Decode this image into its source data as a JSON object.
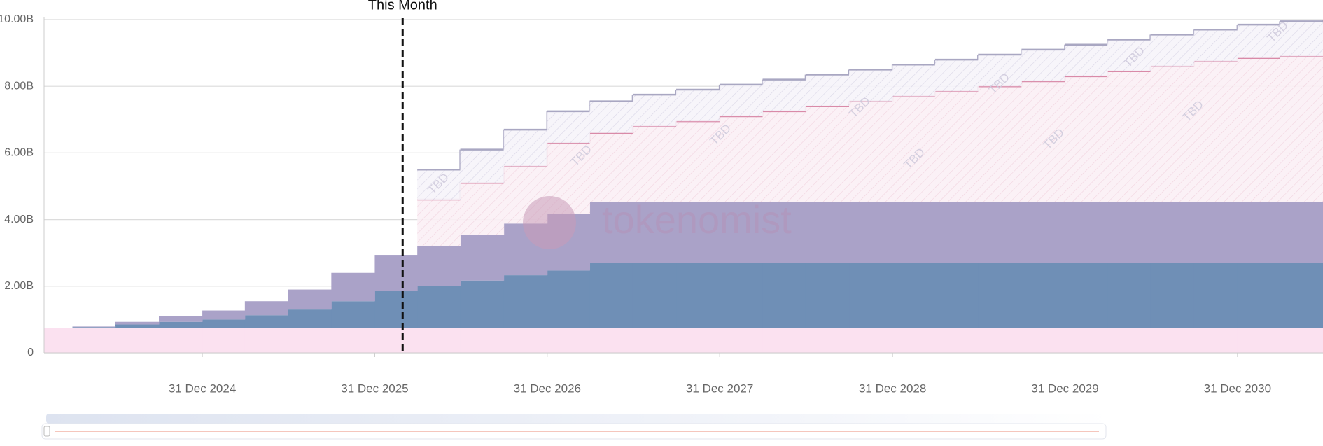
{
  "chart_data": {
    "type": "stacked-step-area",
    "x": [
      "31 Jan 2024",
      "31 Mar 2024",
      "30 Jun 2024",
      "30 Sep 2024",
      "31 Dec 2024",
      "31 Mar 2025",
      "30 Jun 2025",
      "30 Sep 2025",
      "31 Dec 2025",
      "31 Mar 2026",
      "30 Jun 2026",
      "30 Sep 2026",
      "31 Dec 2026",
      "31 Mar 2027",
      "30 Jun 2027",
      "30 Sep 2027",
      "31 Dec 2027",
      "31 Mar 2028",
      "30 Jun 2028",
      "30 Sep 2028",
      "31 Dec 2028",
      "31 Mar 2029",
      "30 Jun 2029",
      "30 Sep 2029",
      "31 Dec 2029",
      "31 Mar 2030",
      "30 Jun 2030",
      "30 Sep 2030",
      "31 Dec 2030",
      "31 Mar 2031",
      "30 Jun 2031"
    ],
    "series": [
      {
        "color": "#fbe1f0",
        "values": [
          0.75,
          0.75,
          0.75,
          0.75,
          0.75,
          0.75,
          0.75,
          0.75,
          0.75,
          0.75,
          0.75,
          0.75,
          0.75,
          0.75,
          0.75,
          0.75,
          0.75,
          0.75,
          0.75,
          0.75,
          0.75,
          0.75,
          0.75,
          0.75,
          0.75,
          0.75,
          0.75,
          0.75,
          0.75,
          0.75,
          0.75
        ]
      },
      {
        "color": "#6f8fb6",
        "values": [
          0,
          0.02,
          0.1,
          0.18,
          0.25,
          0.38,
          0.55,
          0.8,
          1.1,
          1.25,
          1.42,
          1.58,
          1.72,
          1.96,
          1.96,
          1.96,
          1.96,
          1.96,
          1.96,
          1.96,
          1.96,
          1.96,
          1.96,
          1.96,
          1.96,
          1.96,
          1.96,
          1.96,
          1.96,
          1.96,
          1.96
        ]
      },
      {
        "color": "#aaa2c8",
        "values": [
          0,
          0.02,
          0.08,
          0.17,
          0.27,
          0.42,
          0.6,
          0.85,
          1.09,
          1.2,
          1.38,
          1.55,
          1.7,
          1.82,
          1.82,
          1.82,
          1.82,
          1.82,
          1.82,
          1.82,
          1.82,
          1.82,
          1.82,
          1.82,
          1.82,
          1.82,
          1.82,
          1.82,
          1.82,
          1.82,
          1.82
        ]
      },
      {
        "color": "#d98aa8",
        "hatched": true,
        "values": [
          null,
          null,
          null,
          null,
          null,
          null,
          null,
          null,
          null,
          1.4,
          1.55,
          1.72,
          2.13,
          2.07,
          2.27,
          2.42,
          2.57,
          2.72,
          2.87,
          3.02,
          3.17,
          3.32,
          3.47,
          3.62,
          3.77,
          3.92,
          4.07,
          4.22,
          4.32,
          4.37,
          4.37
        ]
      },
      {
        "color": "#a9a7c2",
        "hatched": true,
        "values": [
          null,
          null,
          null,
          null,
          null,
          null,
          null,
          null,
          null,
          0.9,
          1.0,
          1.1,
          0.95,
          0.95,
          0.95,
          0.95,
          0.95,
          0.95,
          0.95,
          0.95,
          0.95,
          0.95,
          0.95,
          0.95,
          0.95,
          0.95,
          0.95,
          0.95,
          1.0,
          1.05,
          1.1
        ]
      }
    ],
    "xlim": [
      "31 Jan 2024",
      "30 Jun 2031"
    ],
    "xticks": [
      "31 Dec 2024",
      "31 Dec 2025",
      "31 Dec 2026",
      "31 Dec 2027",
      "31 Dec 2028",
      "31 Dec 2029",
      "31 Dec 2030"
    ],
    "ylim": [
      0,
      10
    ],
    "yticks": [
      0,
      {
        "value": 2,
        "label": "2.00B"
      },
      {
        "value": 4,
        "label": "4.00B"
      },
      {
        "value": 6,
        "label": "6.00B"
      },
      {
        "value": 8,
        "label": "8.00B"
      },
      {
        "value": 10,
        "label": "10.00B"
      }
    ],
    "grid": true,
    "annotation": {
      "text": "This Month",
      "x": "28 Feb 2026"
    },
    "hatch_label": "TBD",
    "watermark": "tokenomist"
  }
}
